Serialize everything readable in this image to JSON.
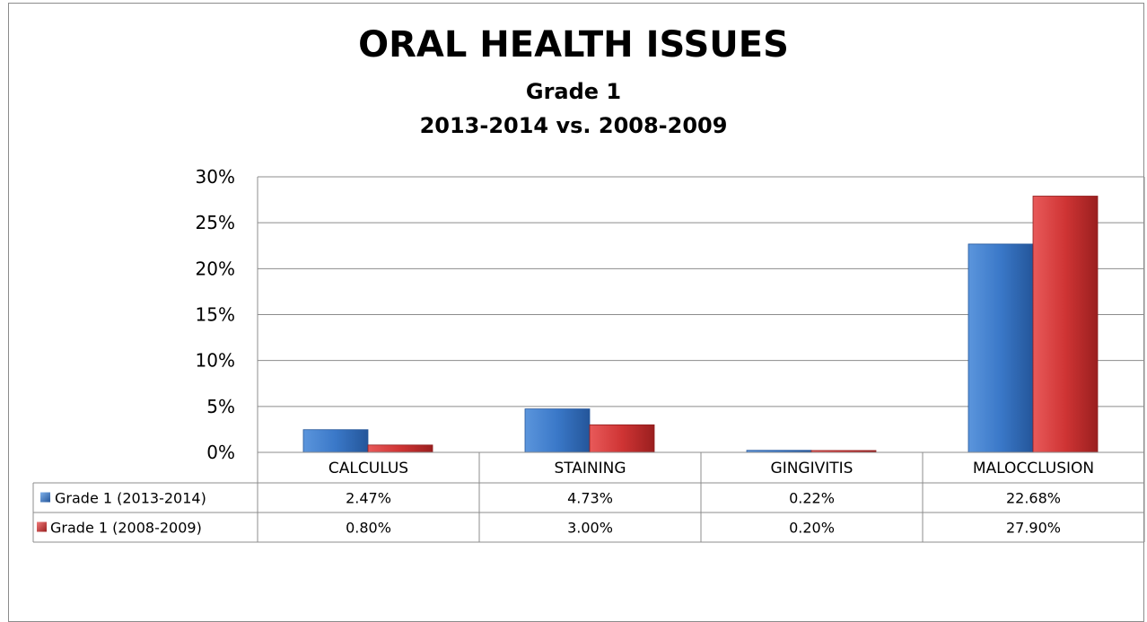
{
  "chart_data": {
    "type": "bar",
    "title": "ORAL HEALTH ISSUES",
    "subtitle": [
      "Grade 1",
      "2013-2014 vs. 2008-2009"
    ],
    "xlabel": "",
    "ylabel": "",
    "categories": [
      "CALCULUS",
      "STAINING",
      "GINGIVITIS",
      "MALOCCLUSION"
    ],
    "series": [
      {
        "name": "Grade 1 (2013-2014)",
        "values": [
          2.47,
          4.73,
          0.22,
          22.68
        ],
        "labels": [
          "2.47%",
          "4.73%",
          "0.22%",
          "22.68%"
        ],
        "color": "#3a78c8"
      },
      {
        "name": "Grade 1 (2008-2009)",
        "values": [
          0.8,
          3.0,
          0.2,
          27.9
        ],
        "labels": [
          "0.80%",
          "3.00%",
          "0.20%",
          "27.90%"
        ],
        "color": "#cf3434"
      }
    ],
    "ylim": [
      0,
      30
    ],
    "yticks": [
      0,
      5,
      10,
      15,
      20,
      25,
      30
    ],
    "ytick_labels": [
      "0%",
      "5%",
      "10%",
      "15%",
      "20%",
      "25%",
      "30%"
    ],
    "grid": true,
    "legend": "data-table"
  }
}
